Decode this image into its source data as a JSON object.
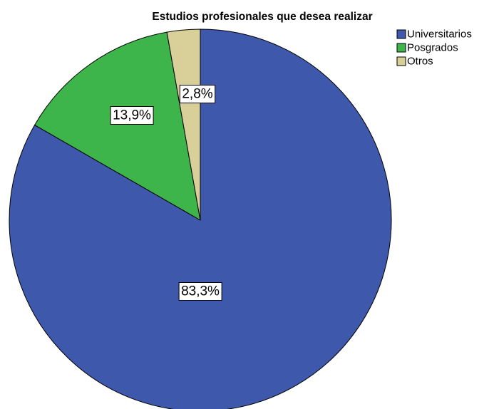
{
  "chart_data": {
    "type": "pie",
    "title": "Estudios profesionales que desea realizar",
    "categories": [
      "Universitarios",
      "Posgrados",
      "Otros"
    ],
    "values": [
      83.3,
      13.9,
      2.8
    ],
    "labels": [
      "83,3%",
      "13,9%",
      "2,8%"
    ],
    "colors": [
      "#3E58AC",
      "#3DB54A",
      "#D8CF99"
    ],
    "legend_position": "top-right",
    "start_angle": "12 o'clock",
    "direction": "clockwise"
  }
}
